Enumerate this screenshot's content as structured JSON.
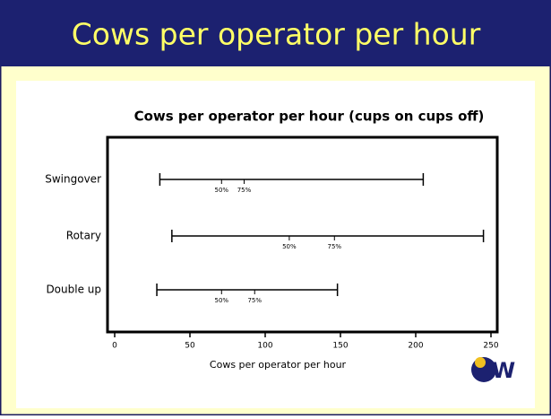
{
  "header": {
    "title": "Cows per operator per hour"
  },
  "chart_data": {
    "type": "range",
    "title": "Cows per operator per hour (cups on cups off)",
    "xlabel": "Cows per operator per hour",
    "categories": [
      "Swingover",
      "Rotary",
      "Double up"
    ],
    "min": [
      30,
      38,
      28
    ],
    "p50": [
      71,
      116,
      71
    ],
    "p75": [
      86,
      146,
      93
    ],
    "max": [
      205,
      245,
      148
    ],
    "marker_labels": [
      "50%",
      "75%"
    ],
    "color": "#000000",
    "xlim": [
      0,
      250
    ],
    "xticks": [
      0,
      50,
      100,
      150,
      200,
      250
    ]
  }
}
